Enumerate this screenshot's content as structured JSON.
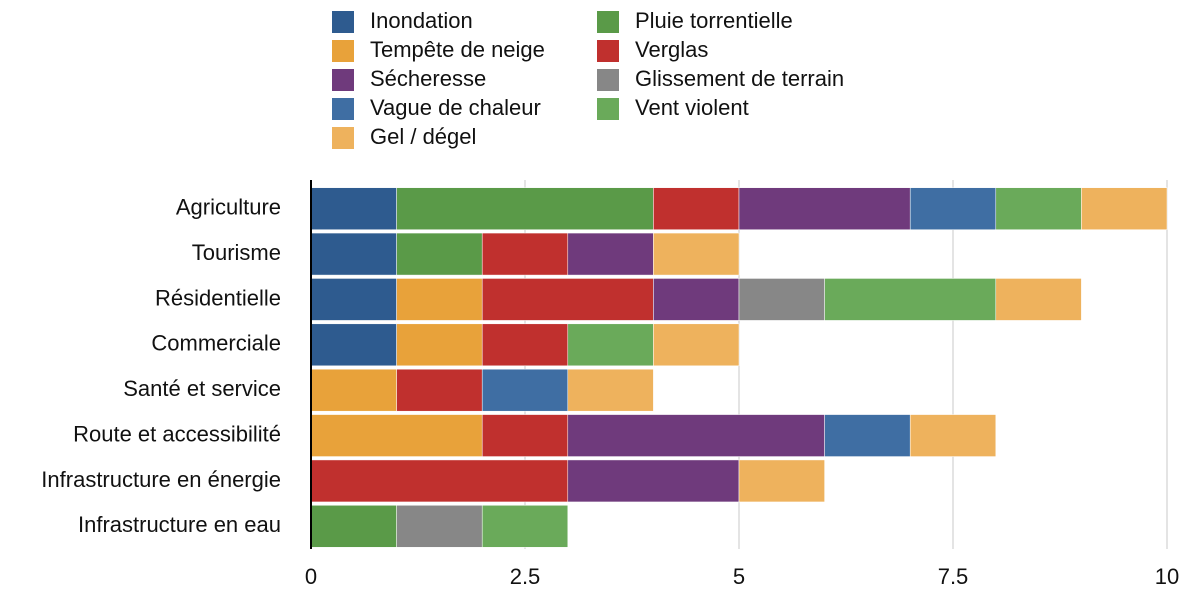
{
  "chart_data": {
    "type": "bar",
    "orientation": "horizontal",
    "stacked": true,
    "categories": [
      "Agriculture",
      "Tourisme",
      "Résidentielle",
      "Commerciale",
      "Santé et service",
      "Route et accessibilité",
      "Infrastructure en énergie",
      "Infrastructure en eau"
    ],
    "series": [
      {
        "name": "Inondation",
        "color": "#2e5b8f",
        "values": [
          1,
          1,
          1,
          1,
          0,
          0,
          0,
          0
        ]
      },
      {
        "name": "Tempête de neige",
        "color": "#e8a23a",
        "values": [
          0,
          0,
          1,
          1,
          1,
          2,
          0,
          0
        ]
      },
      {
        "name": "Pluie torrentielle",
        "color": "#5a9a48",
        "values": [
          3,
          1,
          0,
          0,
          0,
          0,
          0,
          1
        ]
      },
      {
        "name": "Verglas",
        "color": "#c0302e",
        "values": [
          1,
          1,
          2,
          1,
          1,
          1,
          3,
          0
        ]
      },
      {
        "name": "Sécheresse",
        "color": "#6f3a7c",
        "values": [
          2,
          1,
          1,
          0,
          0,
          3,
          2,
          0
        ]
      },
      {
        "name": "Glissement de terrain",
        "color": "#878787",
        "values": [
          0,
          0,
          1,
          0,
          0,
          0,
          0,
          1
        ]
      },
      {
        "name": "Vague de chaleur",
        "color": "#3f6ea3",
        "values": [
          1,
          0,
          0,
          0,
          1,
          1,
          0,
          0
        ]
      },
      {
        "name": "Vent violent",
        "color": "#6aaa5a",
        "values": [
          1,
          0,
          2,
          1,
          0,
          0,
          0,
          1
        ]
      },
      {
        "name": "Gel / dégel",
        "color": "#eeb25d",
        "values": [
          1,
          1,
          1,
          1,
          1,
          1,
          1,
          0
        ]
      }
    ],
    "xlim": [
      0,
      10
    ],
    "xticks": [
      0,
      2.5,
      5,
      7.5,
      10
    ],
    "grid": true
  }
}
